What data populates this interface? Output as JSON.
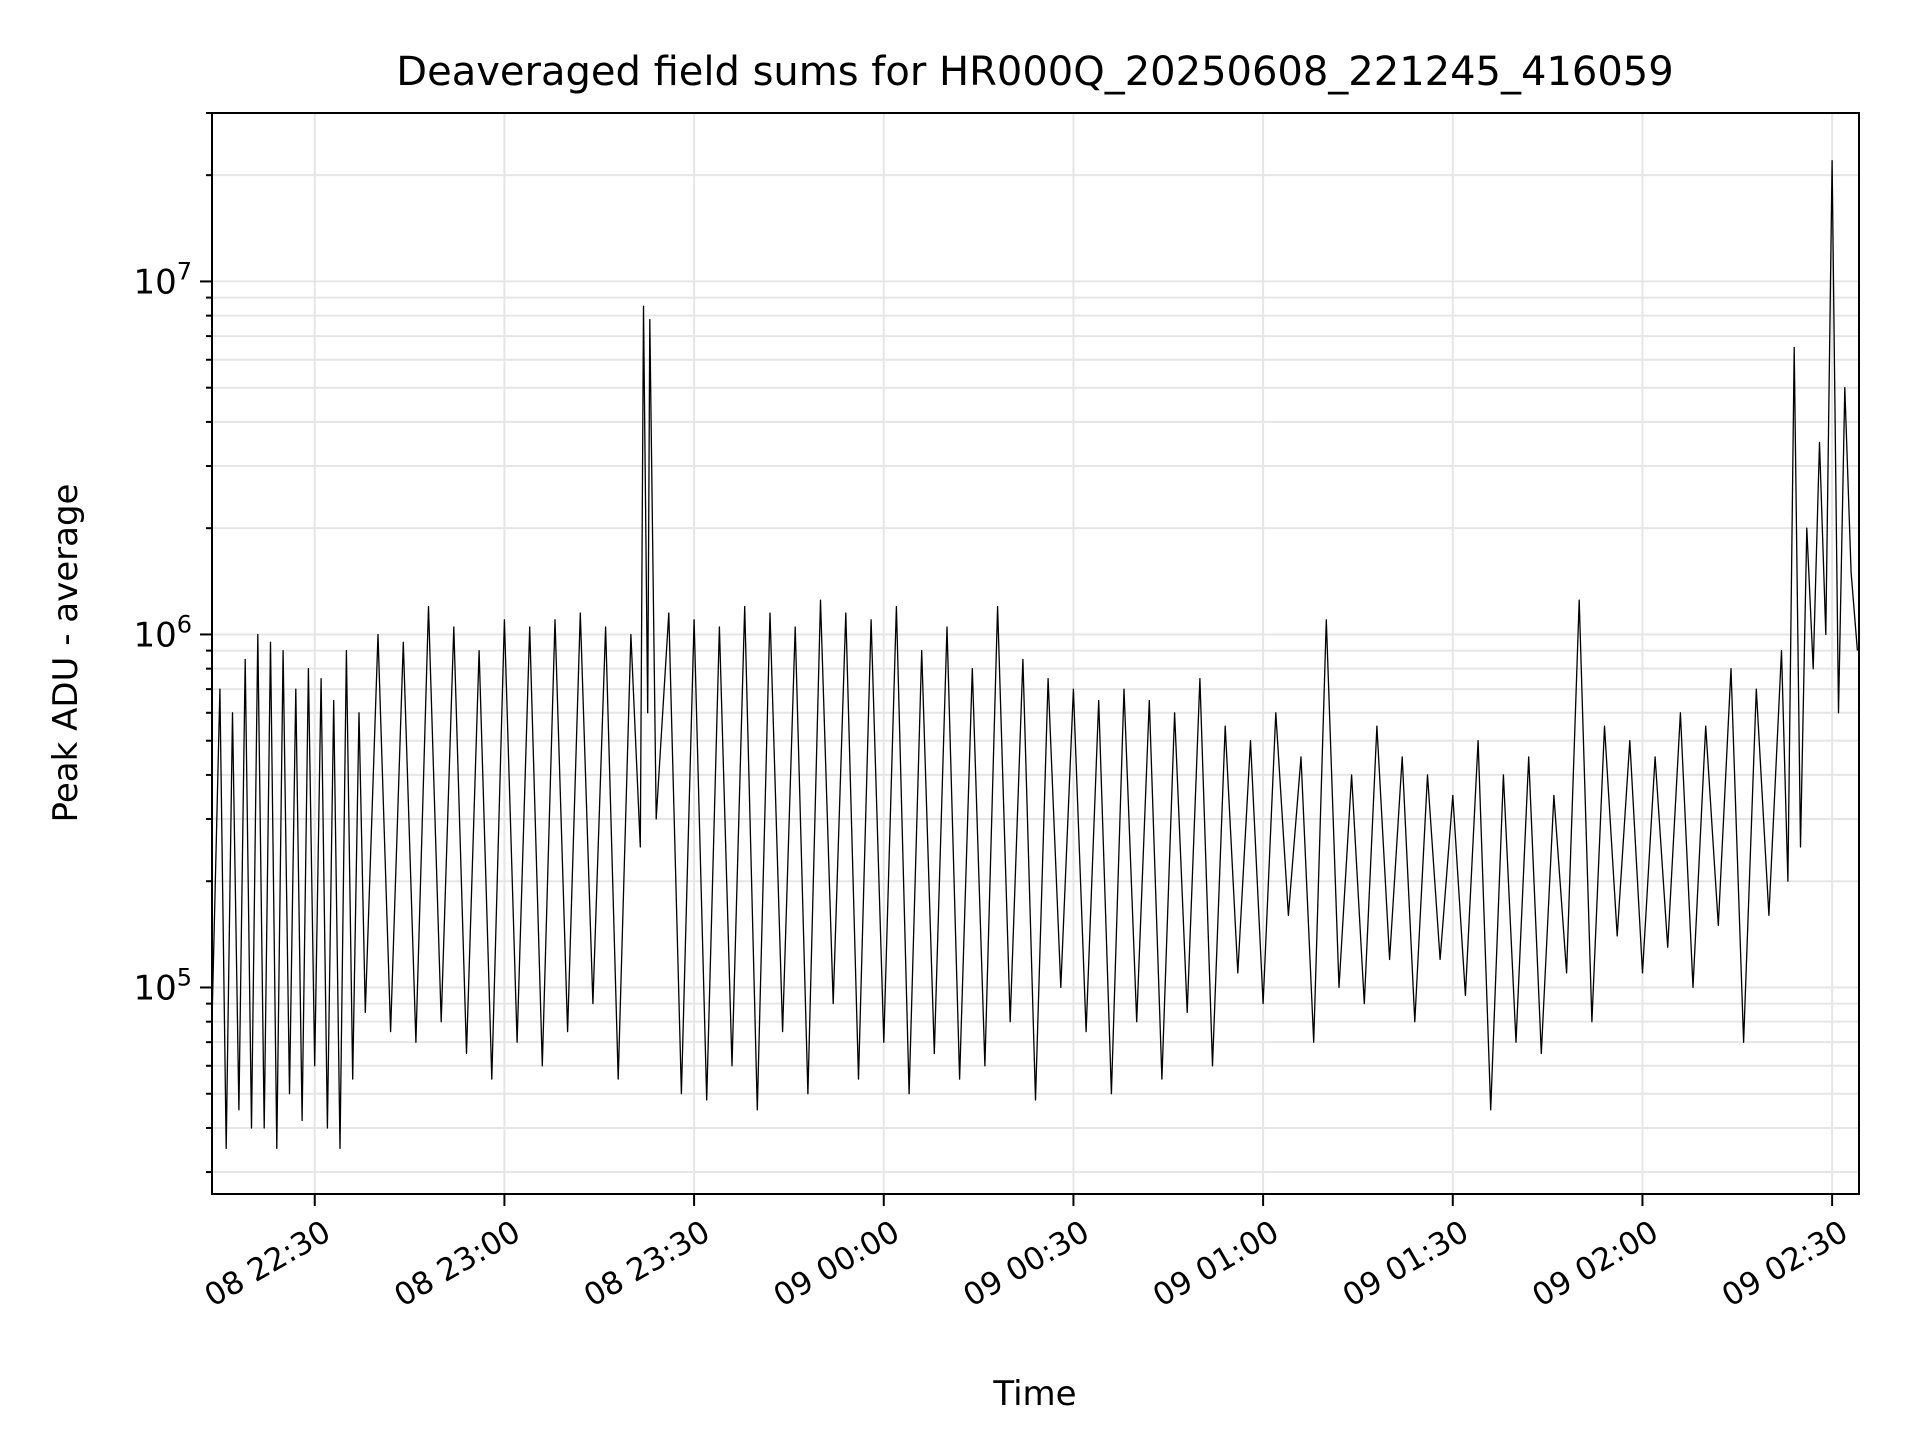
{
  "chart_data": {
    "type": "line",
    "title": "Deaveraged field sums for HR000Q_20250608_221245_416059",
    "xlabel": "Time",
    "ylabel": "Peak ADU - average",
    "y_scale": "log",
    "ylim": [
      26000,
      30000000
    ],
    "xlim": [
      "2025-06-08 22:13:45",
      "2025-06-09 02:34:15"
    ],
    "grid": true,
    "line_color": "#000000",
    "x_ticks": [
      {
        "t": "2025-06-08 22:30",
        "label": "08 22:30"
      },
      {
        "t": "2025-06-08 23:00",
        "label": "08 23:00"
      },
      {
        "t": "2025-06-08 23:30",
        "label": "08 23:30"
      },
      {
        "t": "2025-06-09 00:00",
        "label": "09 00:00"
      },
      {
        "t": "2025-06-09 00:30",
        "label": "09 00:30"
      },
      {
        "t": "2025-06-09 01:00",
        "label": "09 01:00"
      },
      {
        "t": "2025-06-09 01:30",
        "label": "09 01:30"
      },
      {
        "t": "2025-06-09 02:00",
        "label": "09 02:00"
      },
      {
        "t": "2025-06-09 02:30",
        "label": "09 02:30"
      }
    ],
    "y_ticks": [
      {
        "value": 100000,
        "base": "10",
        "exp": "5"
      },
      {
        "value": 1000000,
        "base": "10",
        "exp": "6"
      },
      {
        "value": 10000000,
        "base": "10",
        "exp": "7"
      }
    ],
    "series": [
      {
        "x": [
          "2025-06-08 22:13:45",
          "2025-06-08 22:15:00",
          "2025-06-08 22:16:00",
          "2025-06-08 22:17:00",
          "2025-06-08 22:18:00",
          "2025-06-08 22:19:00",
          "2025-06-08 22:20:00",
          "2025-06-08 22:21:00",
          "2025-06-08 22:22:00",
          "2025-06-08 22:23:00",
          "2025-06-08 22:24:00",
          "2025-06-08 22:25:00",
          "2025-06-08 22:26:00",
          "2025-06-08 22:27:00",
          "2025-06-08 22:28:00",
          "2025-06-08 22:29:00",
          "2025-06-08 22:30:00",
          "2025-06-08 22:31:00",
          "2025-06-08 22:32:00",
          "2025-06-08 22:33:00",
          "2025-06-08 22:34:00",
          "2025-06-08 22:35:00",
          "2025-06-08 22:36:00",
          "2025-06-08 22:37:00",
          "2025-06-08 22:38:00",
          "2025-06-08 22:40:00",
          "2025-06-08 22:42:00",
          "2025-06-08 22:44:00",
          "2025-06-08 22:46:00",
          "2025-06-08 22:48:00",
          "2025-06-08 22:50:00",
          "2025-06-08 22:52:00",
          "2025-06-08 22:54:00",
          "2025-06-08 22:56:00",
          "2025-06-08 22:58:00",
          "2025-06-08 23:00:00",
          "2025-06-08 23:02:00",
          "2025-06-08 23:04:00",
          "2025-06-08 23:06:00",
          "2025-06-08 23:08:00",
          "2025-06-08 23:10:00",
          "2025-06-08 23:12:00",
          "2025-06-08 23:14:00",
          "2025-06-08 23:16:00",
          "2025-06-08 23:18:00",
          "2025-06-08 23:20:00",
          "2025-06-08 23:21:30",
          "2025-06-08 23:22:00",
          "2025-06-08 23:22:40",
          "2025-06-08 23:23:00",
          "2025-06-08 23:24:00",
          "2025-06-08 23:26:00",
          "2025-06-08 23:28:00",
          "2025-06-08 23:30:00",
          "2025-06-08 23:32:00",
          "2025-06-08 23:34:00",
          "2025-06-08 23:36:00",
          "2025-06-08 23:38:00",
          "2025-06-08 23:40:00",
          "2025-06-08 23:42:00",
          "2025-06-08 23:44:00",
          "2025-06-08 23:46:00",
          "2025-06-08 23:48:00",
          "2025-06-08 23:50:00",
          "2025-06-08 23:52:00",
          "2025-06-08 23:54:00",
          "2025-06-08 23:56:00",
          "2025-06-08 23:58:00",
          "2025-06-09 00:00:00",
          "2025-06-09 00:02:00",
          "2025-06-09 00:04:00",
          "2025-06-09 00:06:00",
          "2025-06-09 00:08:00",
          "2025-06-09 00:10:00",
          "2025-06-09 00:12:00",
          "2025-06-09 00:14:00",
          "2025-06-09 00:16:00",
          "2025-06-09 00:18:00",
          "2025-06-09 00:20:00",
          "2025-06-09 00:22:00",
          "2025-06-09 00:24:00",
          "2025-06-09 00:26:00",
          "2025-06-09 00:28:00",
          "2025-06-09 00:30:00",
          "2025-06-09 00:32:00",
          "2025-06-09 00:34:00",
          "2025-06-09 00:36:00",
          "2025-06-09 00:38:00",
          "2025-06-09 00:40:00",
          "2025-06-09 00:42:00",
          "2025-06-09 00:44:00",
          "2025-06-09 00:46:00",
          "2025-06-09 00:48:00",
          "2025-06-09 00:50:00",
          "2025-06-09 00:52:00",
          "2025-06-09 00:54:00",
          "2025-06-09 00:56:00",
          "2025-06-09 00:58:00",
          "2025-06-09 01:00:00",
          "2025-06-09 01:02:00",
          "2025-06-09 01:04:00",
          "2025-06-09 01:06:00",
          "2025-06-09 01:08:00",
          "2025-06-09 01:10:00",
          "2025-06-09 01:12:00",
          "2025-06-09 01:14:00",
          "2025-06-09 01:16:00",
          "2025-06-09 01:18:00",
          "2025-06-09 01:20:00",
          "2025-06-09 01:22:00",
          "2025-06-09 01:24:00",
          "2025-06-09 01:26:00",
          "2025-06-09 01:28:00",
          "2025-06-09 01:30:00",
          "2025-06-09 01:32:00",
          "2025-06-09 01:34:00",
          "2025-06-09 01:36:00",
          "2025-06-09 01:38:00",
          "2025-06-09 01:40:00",
          "2025-06-09 01:42:00",
          "2025-06-09 01:44:00",
          "2025-06-09 01:46:00",
          "2025-06-09 01:48:00",
          "2025-06-09 01:50:00",
          "2025-06-09 01:52:00",
          "2025-06-09 01:54:00",
          "2025-06-09 01:56:00",
          "2025-06-09 01:58:00",
          "2025-06-09 02:00:00",
          "2025-06-09 02:02:00",
          "2025-06-09 02:04:00",
          "2025-06-09 02:06:00",
          "2025-06-09 02:08:00",
          "2025-06-09 02:10:00",
          "2025-06-09 02:12:00",
          "2025-06-09 02:14:00",
          "2025-06-09 02:16:00",
          "2025-06-09 02:18:00",
          "2025-06-09 02:20:00",
          "2025-06-09 02:22:00",
          "2025-06-09 02:23:00",
          "2025-06-09 02:24:00",
          "2025-06-09 02:25:00",
          "2025-06-09 02:26:00",
          "2025-06-09 02:27:00",
          "2025-06-09 02:28:00",
          "2025-06-09 02:29:00",
          "2025-06-09 02:30:00",
          "2025-06-09 02:31:00",
          "2025-06-09 02:32:00",
          "2025-06-09 02:33:00",
          "2025-06-09 02:34:00"
        ],
        "y": [
          80000,
          700000,
          35000,
          600000,
          45000,
          850000,
          40000,
          1000000,
          40000,
          950000,
          35000,
          900000,
          50000,
          700000,
          42000,
          800000,
          60000,
          750000,
          40000,
          650000,
          35000,
          900000,
          55000,
          600000,
          85000,
          1000000,
          75000,
          950000,
          70000,
          1200000,
          80000,
          1050000,
          65000,
          900000,
          55000,
          1100000,
          70000,
          1050000,
          60000,
          1100000,
          75000,
          1150000,
          90000,
          1050000,
          55000,
          1000000,
          250000,
          8500000,
          600000,
          7800000,
          300000,
          1150000,
          50000,
          1100000,
          48000,
          1050000,
          60000,
          1200000,
          45000,
          1150000,
          75000,
          1050000,
          50000,
          1250000,
          90000,
          1150000,
          55000,
          1100000,
          70000,
          1200000,
          50000,
          900000,
          65000,
          1050000,
          55000,
          800000,
          60000,
          1200000,
          80000,
          850000,
          48000,
          750000,
          100000,
          700000,
          75000,
          650000,
          50000,
          700000,
          80000,
          650000,
          55000,
          600000,
          85000,
          750000,
          60000,
          550000,
          110000,
          500000,
          90000,
          600000,
          160000,
          450000,
          70000,
          1100000,
          100000,
          400000,
          90000,
          550000,
          120000,
          450000,
          80000,
          400000,
          120000,
          350000,
          95000,
          500000,
          45000,
          400000,
          70000,
          450000,
          65000,
          350000,
          110000,
          1250000,
          80000,
          550000,
          140000,
          500000,
          110000,
          450000,
          130000,
          600000,
          100000,
          550000,
          150000,
          800000,
          70000,
          700000,
          160000,
          900000,
          200000,
          6500000,
          250000,
          2000000,
          800000,
          3500000,
          1000000,
          22000000,
          600000,
          5000000,
          1500000,
          900000
        ]
      }
    ]
  }
}
